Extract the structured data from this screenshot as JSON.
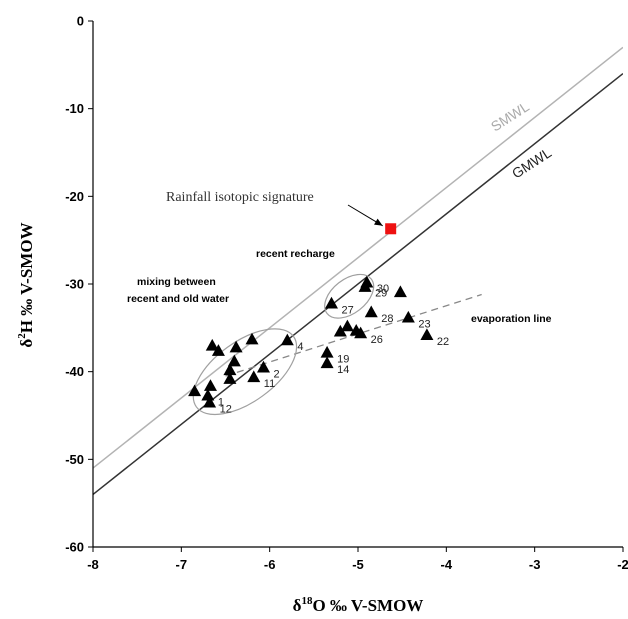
{
  "chart_data": {
    "type": "scatter",
    "xlabel_prefix": "δ",
    "xlabel_sup": "18",
    "xlabel_suffix": "O ‰ V-SMOW",
    "ylabel_prefix": "δ",
    "ylabel_sup": "2",
    "ylabel_suffix": "H ‰ V-SMOW",
    "xlim": [
      -8,
      -2
    ],
    "ylim": [
      -60,
      0
    ],
    "xticks": [
      -8,
      -7,
      -6,
      -5,
      -4,
      -3,
      -2
    ],
    "yticks": [
      0,
      -10,
      -20,
      -30,
      -40,
      -50,
      -60
    ],
    "lines": [
      {
        "name": "SMWL",
        "slope": 8,
        "intercept": 13,
        "color": "#b3b3b3"
      },
      {
        "name": "GMWL",
        "slope": 8,
        "intercept": 10,
        "color": "#333333"
      }
    ],
    "evaporation_line": {
      "label": "evaporation line",
      "x": [
        -6.5,
        -3.6
      ],
      "y": [
        -40.5,
        -31.2
      ],
      "color": "#888888"
    },
    "rainfall": {
      "label": "Rainfall  isotopic signature",
      "x": -4.63,
      "y": -23.7,
      "color": "#ee1111"
    },
    "points": [
      {
        "x": -6.85,
        "y": -42.2,
        "label": ""
      },
      {
        "x": -6.7,
        "y": -42.7,
        "label": "1"
      },
      {
        "x": -6.68,
        "y": -43.5,
        "label": "12"
      },
      {
        "x": -6.67,
        "y": -41.6,
        "label": ""
      },
      {
        "x": -6.65,
        "y": -37.0,
        "label": ""
      },
      {
        "x": -6.58,
        "y": -37.6,
        "label": ""
      },
      {
        "x": -6.45,
        "y": -40.8,
        "label": ""
      },
      {
        "x": -6.45,
        "y": -39.8,
        "label": ""
      },
      {
        "x": -6.4,
        "y": -38.8,
        "label": ""
      },
      {
        "x": -6.38,
        "y": -37.2,
        "label": ""
      },
      {
        "x": -6.18,
        "y": -40.6,
        "label": "11"
      },
      {
        "x": -6.2,
        "y": -36.3,
        "label": ""
      },
      {
        "x": -6.07,
        "y": -39.5,
        "label": "2"
      },
      {
        "x": -5.8,
        "y": -36.4,
        "label": "4"
      },
      {
        "x": -5.35,
        "y": -37.8,
        "label": "19"
      },
      {
        "x": -5.35,
        "y": -39.0,
        "label": "14"
      },
      {
        "x": -5.3,
        "y": -32.2,
        "label": "27"
      },
      {
        "x": -5.2,
        "y": -35.4,
        "label": ""
      },
      {
        "x": -5.12,
        "y": -34.8,
        "label": ""
      },
      {
        "x": -5.02,
        "y": -35.3,
        "label": ""
      },
      {
        "x": -4.97,
        "y": -35.6,
        "label": "26"
      },
      {
        "x": -4.92,
        "y": -30.3,
        "label": "29"
      },
      {
        "x": -4.9,
        "y": -29.8,
        "label": "30"
      },
      {
        "x": -4.85,
        "y": -33.2,
        "label": "28"
      },
      {
        "x": -4.52,
        "y": -30.9,
        "label": ""
      },
      {
        "x": -4.43,
        "y": -33.8,
        "label": "23"
      },
      {
        "x": -4.22,
        "y": -35.8,
        "label": "22"
      }
    ],
    "annotations": {
      "smwl": "SMWL",
      "gmwl": "GMWL",
      "rainfall": "Rainfall  isotopic signature",
      "recent_recharge": "recent recharge",
      "mixing_line1": "mixing between",
      "mixing_line2": "recent and old water",
      "evaporation": "evaporation line"
    }
  }
}
